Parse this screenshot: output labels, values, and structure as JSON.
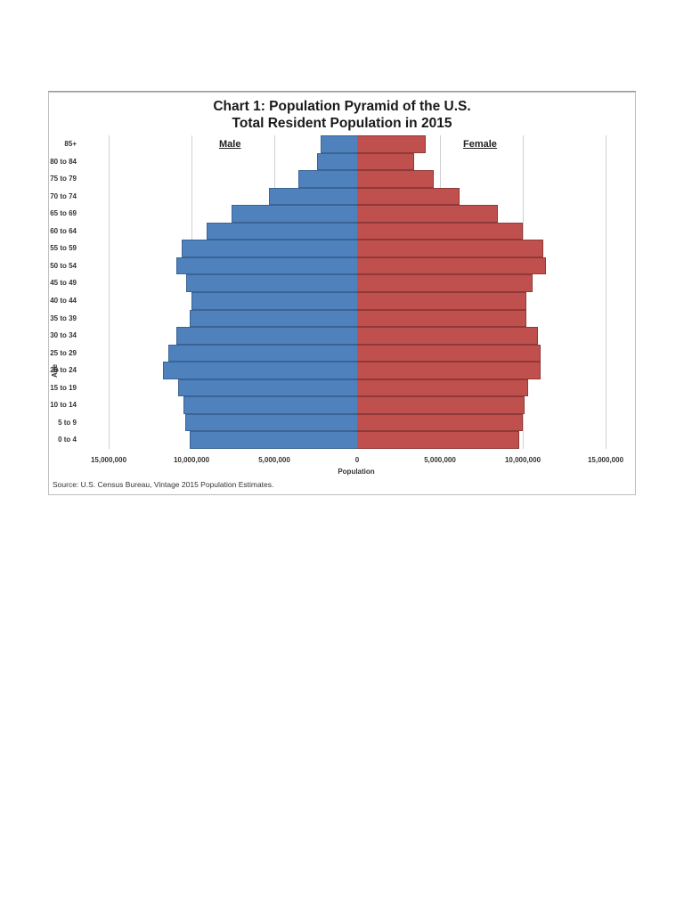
{
  "chart_data": {
    "type": "bar",
    "orientation": "horizontal-pyramid",
    "title": "Chart 1: Population Pyramid of the U.S.",
    "subtitle": "Total Resident Population in 2015",
    "xlabel": "Population",
    "ylabel": "Age",
    "xlim": [
      -15000000,
      15000000
    ],
    "xticks": [
      "15,000,000",
      "10,000,000",
      "5,000,000",
      "0",
      "5,000,000",
      "10,000,000",
      "15,000,000"
    ],
    "grid": true,
    "legend_position": "inline-top",
    "source": "Source: U.S. Census Bureau, Vintage 2015 Population Estimates.",
    "categories": [
      "85+",
      "80 to 84",
      "75 to 79",
      "70 to 74",
      "65 to 69",
      "60 to 64",
      "55 to 59",
      "50 to 54",
      "45 to 49",
      "40 to 44",
      "35 to 39",
      "30 to 34",
      "25 to 29",
      "20 to 24",
      "15 to 19",
      "10 to 14",
      "5 to 9",
      "0 to 4"
    ],
    "series": [
      {
        "name": "Male",
        "color": "#4f81bd",
        "values": [
          2200000,
          2400000,
          3550000,
          5300000,
          7600000,
          9100000,
          10600000,
          10900000,
          10300000,
          10000000,
          10100000,
          10900000,
          11400000,
          11700000,
          10800000,
          10500000,
          10400000,
          10100000
        ]
      },
      {
        "name": "Female",
        "color": "#c0504d",
        "values": [
          4150000,
          3450000,
          4600000,
          6200000,
          8500000,
          10000000,
          11250000,
          11400000,
          10600000,
          10200000,
          10200000,
          10900000,
          11100000,
          11100000,
          10300000,
          10100000,
          10000000,
          9800000
        ]
      }
    ]
  },
  "labels": {
    "title_line1": "Chart 1: Population Pyramid of the U.S.",
    "title_line2": "Total Resident Population in 2015",
    "male": "Male",
    "female": "Female",
    "age_axis": "Age",
    "x_axis": "Population",
    "source": "Source: U.S. Census Bureau, Vintage 2015 Population Estimates."
  }
}
